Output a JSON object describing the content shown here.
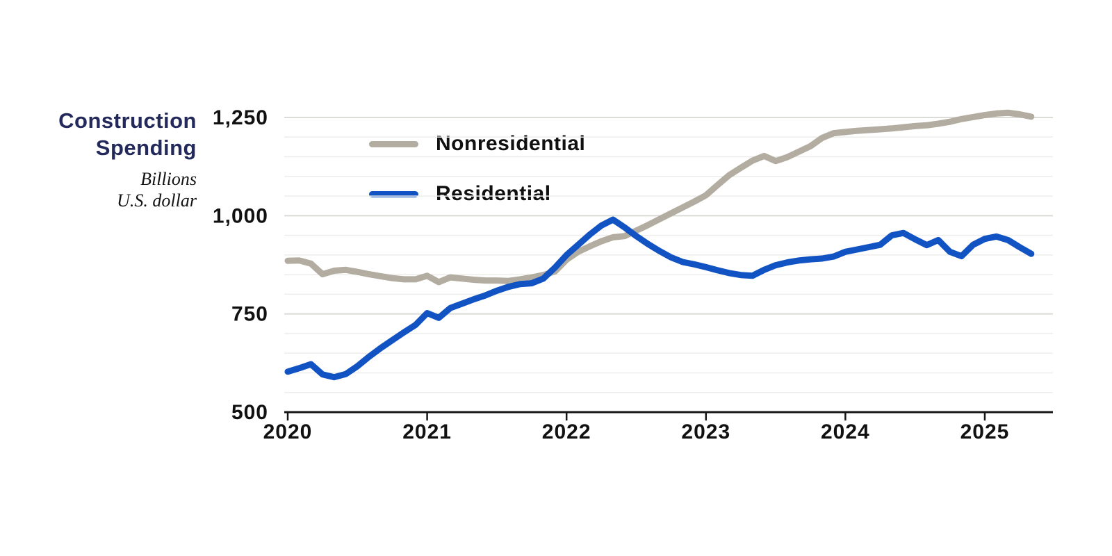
{
  "header": {
    "title_line1": "Construction",
    "title_line2": "Spending",
    "subtitle_line1": "Billions",
    "subtitle_line2": "U.S. dollar"
  },
  "legend": {
    "nonresidential_label": "Nonresidential",
    "residential_label": "Residential"
  },
  "colors": {
    "nonresidential": "#b3aca0",
    "residential": "#1253c4",
    "title_navy": "#232a5b",
    "axis": "#161616",
    "grid_minor": "#ededeb",
    "grid_major": "#dbdbd8",
    "label_text": "#111111"
  },
  "chart_data": {
    "type": "line",
    "title": "Construction Spending",
    "ylabel": "Billions U.S. dollar",
    "ylim": [
      500,
      1250
    ],
    "y_ticks": [
      500,
      750,
      1000,
      1250
    ],
    "y_tick_labels": [
      "500",
      "750",
      "1,000",
      "1,250"
    ],
    "grid_step": 50,
    "x_tick_labels": [
      "2020",
      "2021",
      "2022",
      "2023",
      "2024",
      "2025"
    ],
    "x_start_month": "2020-01",
    "x_end_month": "2025-05",
    "legend_position": "upper-left-inside",
    "grid": "horizontal-only",
    "series": [
      {
        "name": "Nonresidential",
        "color": "#b3aca0",
        "values": [
          885,
          886,
          878,
          851,
          860,
          862,
          857,
          851,
          846,
          841,
          838,
          838,
          847,
          831,
          843,
          840,
          837,
          835,
          835,
          834,
          838,
          843,
          849,
          858,
          888,
          908,
          922,
          935,
          945,
          948,
          962,
          976,
          991,
          1006,
          1021,
          1036,
          1052,
          1078,
          1103,
          1122,
          1140,
          1152,
          1139,
          1149,
          1163,
          1177,
          1198,
          1210,
          1213,
          1216,
          1218,
          1220,
          1222,
          1225,
          1228,
          1230,
          1234,
          1239,
          1246,
          1251,
          1256,
          1260,
          1262,
          1258,
          1252
        ]
      },
      {
        "name": "Residential",
        "color": "#1253c4",
        "values": [
          603,
          612,
          622,
          596,
          589,
          597,
          617,
          641,
          663,
          683,
          703,
          722,
          752,
          740,
          765,
          776,
          787,
          797,
          809,
          819,
          826,
          828,
          840,
          868,
          900,
          926,
          952,
          975,
          990,
          970,
          948,
          928,
          910,
          894,
          882,
          876,
          869,
          861,
          854,
          849,
          847,
          862,
          874,
          881,
          886,
          889,
          891,
          896,
          908,
          914,
          920,
          926,
          950,
          956,
          940,
          925,
          938,
          908,
          897,
          926,
          941,
          947,
          938,
          920,
          903
        ]
      }
    ]
  }
}
